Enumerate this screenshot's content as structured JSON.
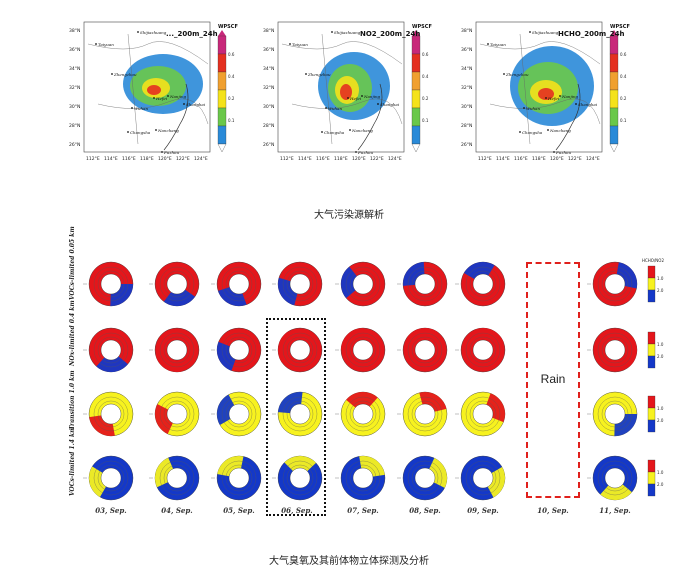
{
  "top_figure": {
    "panels": [
      {
        "title": "..._200m_24h",
        "legend_title": "WPSCF"
      },
      {
        "title": "NO2_200m_24h",
        "legend_title": "WPSCF"
      },
      {
        "title": "HCHO_200m_24h",
        "legend_title": "WPSCF"
      }
    ],
    "lat_labels": [
      "38°N",
      "36°N",
      "34°N",
      "32°N",
      "30°N",
      "28°N",
      "26°N"
    ],
    "lon_labels": [
      "112°E",
      "114°E",
      "116°E",
      "118°E",
      "120°E",
      "122°E",
      "124°E"
    ],
    "city_labels": [
      "Taiyuan",
      "Shijiazhuang",
      "Zhengzhou",
      "Hefei",
      "Nanjing",
      "Wuhan",
      "Shanghai",
      "Nanchang",
      "Changsha",
      "Fuzhou"
    ],
    "legend_ticks": [
      "0.6",
      "0.4",
      "0.2",
      "0.1"
    ],
    "legend_colors": [
      "#c8287a",
      "#e43020",
      "#f0a030",
      "#f4e21a",
      "#6ac84a",
      "#2a8ad8"
    ],
    "caption": "大气污染源解析"
  },
  "bottom_figure": {
    "row_labels": [
      "VOCs-limited 0.05 km",
      "NOx-limited 0.4 km",
      "Transition 1.0 km",
      "VOCs-limited 1.4 km"
    ],
    "dates": [
      "03, Sep.",
      "04, Sep.",
      "05, Sep.",
      "06, Sep.",
      "07, Sep.",
      "08, Sep.",
      "09, Sep.",
      "10, Sep.",
      "11, Sep."
    ],
    "rain_label": "Rain",
    "legend_title": "HCHO/NO2",
    "legend_ticks": [
      "1.0",
      "2.0"
    ],
    "colors": {
      "red": "#e4161b",
      "yellow": "#f7f21f",
      "blue": "#1438c8"
    },
    "caption": "大气臭氧及其前体物立体探测及分析"
  }
}
